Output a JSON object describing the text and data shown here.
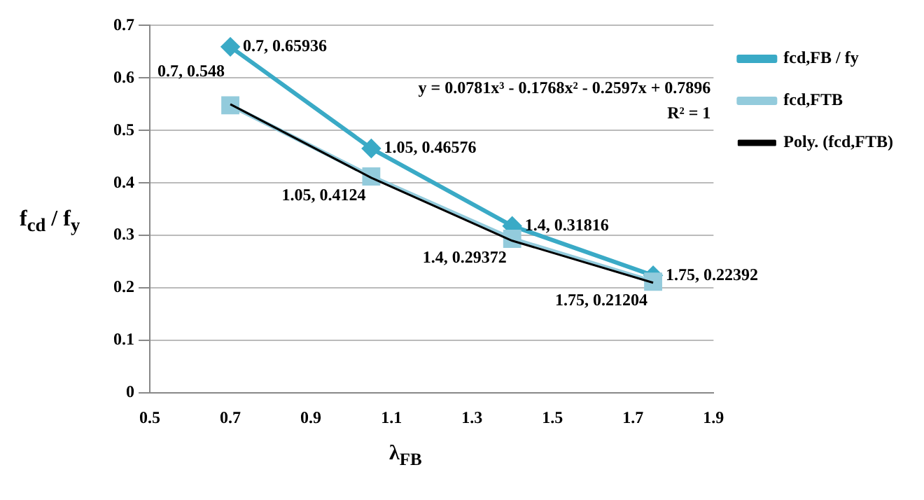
{
  "chart_data": {
    "type": "line",
    "xlabel": "λ$_{FB}$",
    "ylabel": "f$_{cd}$ / f$_{y}$",
    "xlim": [
      0.5,
      1.9
    ],
    "xticks": [
      0.5,
      0.7,
      0.9,
      1.1,
      1.3,
      1.5,
      1.7,
      1.9
    ],
    "ylim": [
      0,
      0.7
    ],
    "yticks": [
      0,
      0.1,
      0.2,
      0.3,
      0.4,
      0.5,
      0.6,
      0.7
    ],
    "grid": "y",
    "legend": "right",
    "x": [
      0.7,
      1.05,
      1.4,
      1.75
    ],
    "series": [
      {
        "name": "fcd,FB / fy",
        "color": "#3aaac6",
        "marker": "diamond",
        "values": [
          0.65936,
          0.46576,
          0.31816,
          0.22392
        ],
        "value_labels": [
          "0.7, 0.65936",
          "1.05, 0.46576",
          "1.4, 0.31816",
          "1.75, 0.22392"
        ]
      },
      {
        "name": "fcd,FTB",
        "color": "#93cbdc",
        "marker": "square",
        "values": [
          0.548,
          0.4124,
          0.29372,
          0.21204
        ],
        "value_labels": [
          "0.7, 0.548",
          "1.05, 0.4124",
          "1.4, 0.29372",
          "1.75, 0.21204"
        ]
      },
      {
        "name": "Poly. (fcd,FTB)",
        "color": "#000000",
        "marker": "none",
        "values": [
          0.55,
          0.41,
          0.29,
          0.21
        ]
      }
    ],
    "annotations": [
      "y = 0.0781x³ - 0.1768x² - 0.2597x + 0.7896",
      "R² = 1"
    ]
  }
}
